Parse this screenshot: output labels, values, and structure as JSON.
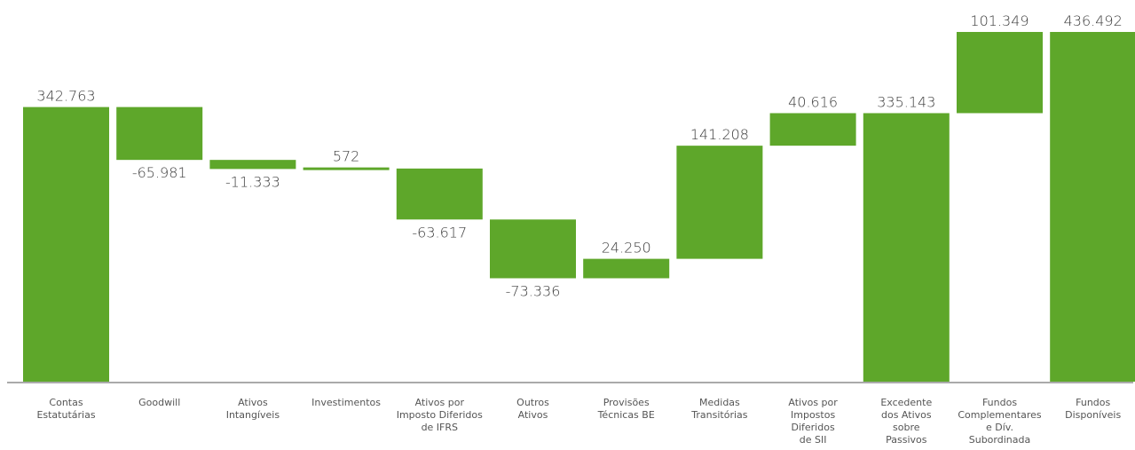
{
  "chart_data": {
    "type": "bar",
    "subtype": "waterfall",
    "title": "",
    "xlabel": "",
    "ylabel": "",
    "ylim": [
      0,
      436492
    ],
    "grid": false,
    "legend": "none",
    "bar_color": "#5ea72a",
    "axis_color": "#555555",
    "categories": [
      [
        "Contas",
        "Estatutárias"
      ],
      [
        "Goodwill"
      ],
      [
        "Ativos",
        "Intangíveis"
      ],
      [
        "Investimentos"
      ],
      [
        "Ativos por",
        "Imposto Diferidos",
        "de IFRS"
      ],
      [
        "Outros",
        "Ativos"
      ],
      [
        "Provisões",
        "Técnicas BE"
      ],
      [
        "Medidas",
        "Transitórias"
      ],
      [
        "Ativos por",
        "Impostos",
        "Diferidos",
        "de SII"
      ],
      [
        "Excedente",
        "dos Ativos",
        "sobre",
        "Passivos"
      ],
      [
        "Fundos",
        "Complementares",
        "e Dív.",
        "Subordinada"
      ],
      [
        "Fundos",
        "Disponíveis"
      ]
    ],
    "values": [
      342763,
      -65981,
      -11333,
      572,
      -63617,
      -73336,
      24250,
      141208,
      40616,
      335143,
      101349,
      436492
    ],
    "value_labels": [
      "342.763",
      "-65.981",
      "-11.333",
      "572",
      "-63.617",
      "-73.336",
      "24.250",
      "141.208",
      "40.616",
      "335.143",
      "101.349",
      "436.492"
    ],
    "bar_kind": [
      "total",
      "delta",
      "delta",
      "delta",
      "delta",
      "delta",
      "delta",
      "delta",
      "delta",
      "total",
      "delta",
      "total"
    ]
  }
}
